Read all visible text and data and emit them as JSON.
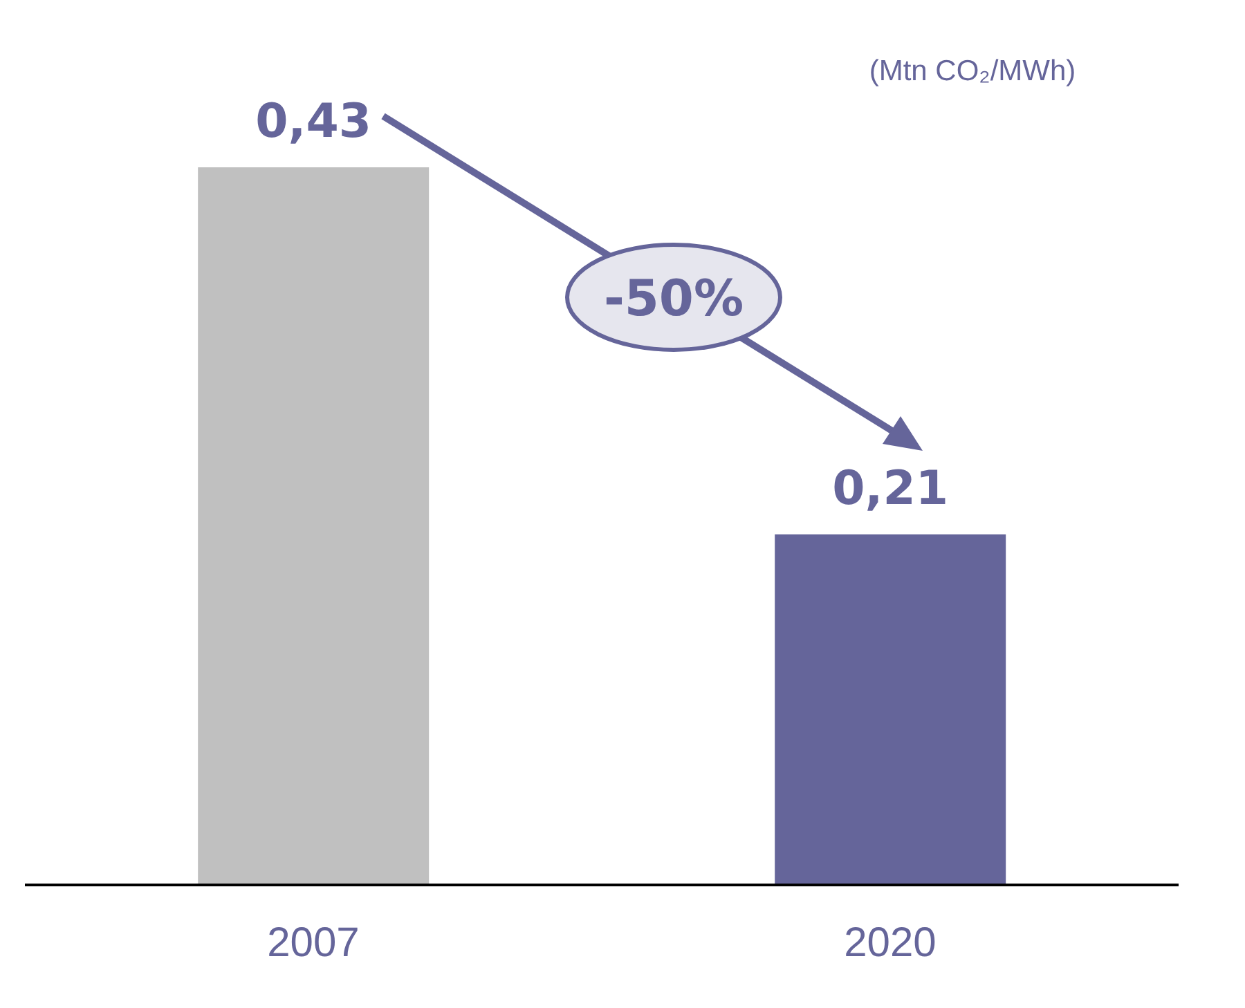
{
  "chart_data": {
    "type": "bar",
    "ylabel": "(Mtn CO₂/MWh)",
    "categories": [
      "2007",
      "2020"
    ],
    "values": [
      0.43,
      0.21
    ],
    "colors": [
      "#c0c0c0",
      "#65659a"
    ],
    "value_labels": [
      "0,43",
      "0,21"
    ],
    "tick_labels": "x",
    "annotations": [
      "-50%"
    ],
    "grid": false,
    "legend": false
  }
}
